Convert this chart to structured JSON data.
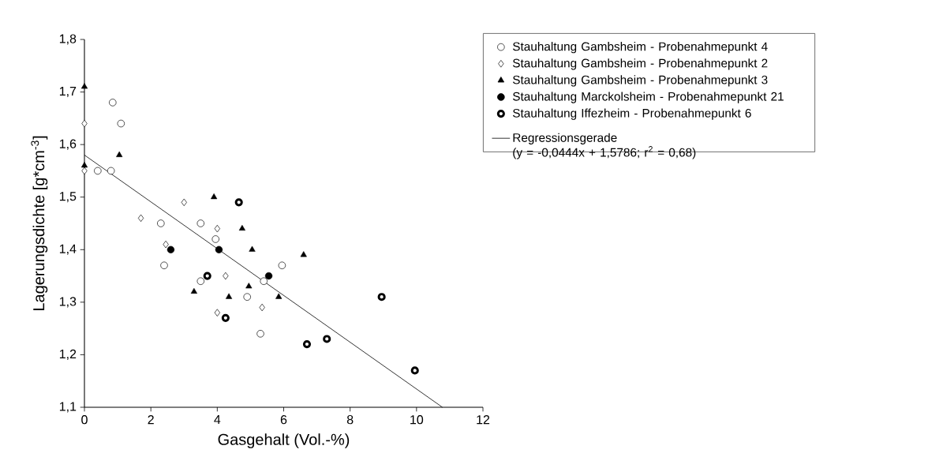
{
  "chart_data": {
    "type": "scatter",
    "xlabel": "Gasgehalt (Vol.-%)",
    "ylabel": "Lagerungsdichte [g*cm$^{-3}$]",
    "xlim": [
      0,
      12
    ],
    "xticks": [
      0,
      2,
      4,
      6,
      8,
      10,
      12
    ],
    "ylim": [
      1.1,
      1.8
    ],
    "yticks": [
      {
        "value": 1.1,
        "label": "1,1"
      },
      {
        "value": 1.2,
        "label": "1,2"
      },
      {
        "value": 1.3,
        "label": "1,3"
      },
      {
        "value": 1.4,
        "label": "1,4"
      },
      {
        "value": 1.5,
        "label": "1,5"
      },
      {
        "value": 1.6,
        "label": "1,6"
      },
      {
        "value": 1.7,
        "label": "1,7"
      },
      {
        "value": 1.8,
        "label": "1,8"
      }
    ],
    "grid": false,
    "legend": "right",
    "series": [
      {
        "name": "Stauhaltung Gambsheim - Probenahmepunkt 4",
        "color": "#000000",
        "marker": "circle",
        "x": [
          0.85,
          1.1,
          0.4,
          0.8,
          2.3,
          3.5,
          2.4,
          3.95,
          3.5,
          4.9,
          5.3,
          5.4,
          5.95
        ],
        "values": [
          1.68,
          1.64,
          1.55,
          1.55,
          1.45,
          1.45,
          1.37,
          1.42,
          1.34,
          1.31,
          1.24,
          1.34,
          1.37
        ]
      },
      {
        "name": "Stauhaltung Gambsheim - Probenahmepunkt 2",
        "color": "#000000",
        "marker": "diamond",
        "x": [
          0,
          0,
          1.7,
          3.0,
          2.45,
          4.0,
          4.25,
          4.0,
          5.35
        ],
        "values": [
          1.64,
          1.55,
          1.46,
          1.49,
          1.41,
          1.44,
          1.35,
          1.28,
          1.29
        ]
      },
      {
        "name": "Stauhaltung Gambsheim - Probenahmepunkt 3",
        "color": "#000000",
        "marker": "triangle",
        "x": [
          0,
          0,
          1.05,
          3.9,
          4.75,
          5.05,
          3.3,
          4.35,
          4.95,
          5.85,
          6.6
        ],
        "values": [
          1.71,
          1.56,
          1.58,
          1.5,
          1.44,
          1.4,
          1.32,
          1.31,
          1.33,
          1.31,
          1.39
        ]
      },
      {
        "name": "Stauhaltung Marckolsheim - Probenahmepunkt 21",
        "color": "#000000",
        "marker": "circle",
        "x": [
          2.6,
          4.05,
          5.55
        ],
        "values": [
          1.4,
          1.4,
          1.35
        ]
      },
      {
        "name": "Stauhaltung Iffezheim - Probenahmepunkt 6",
        "color": "#000000",
        "marker": "circle",
        "x": [
          4.65,
          3.7,
          4.25,
          6.7,
          7.3,
          8.95,
          9.95
        ],
        "values": [
          1.49,
          1.35,
          1.27,
          1.22,
          1.23,
          1.31,
          1.17
        ]
      },
      {
        "name": "Regressionsgerade\n(y = -0,0444x + 1,5786; r$^{2}$ = 0,68)",
        "type": "line",
        "color": "#000000",
        "marker": "none",
        "line_style": "solid",
        "x": [
          0,
          10.78
        ],
        "values": [
          1.58,
          1.1
        ]
      }
    ]
  }
}
